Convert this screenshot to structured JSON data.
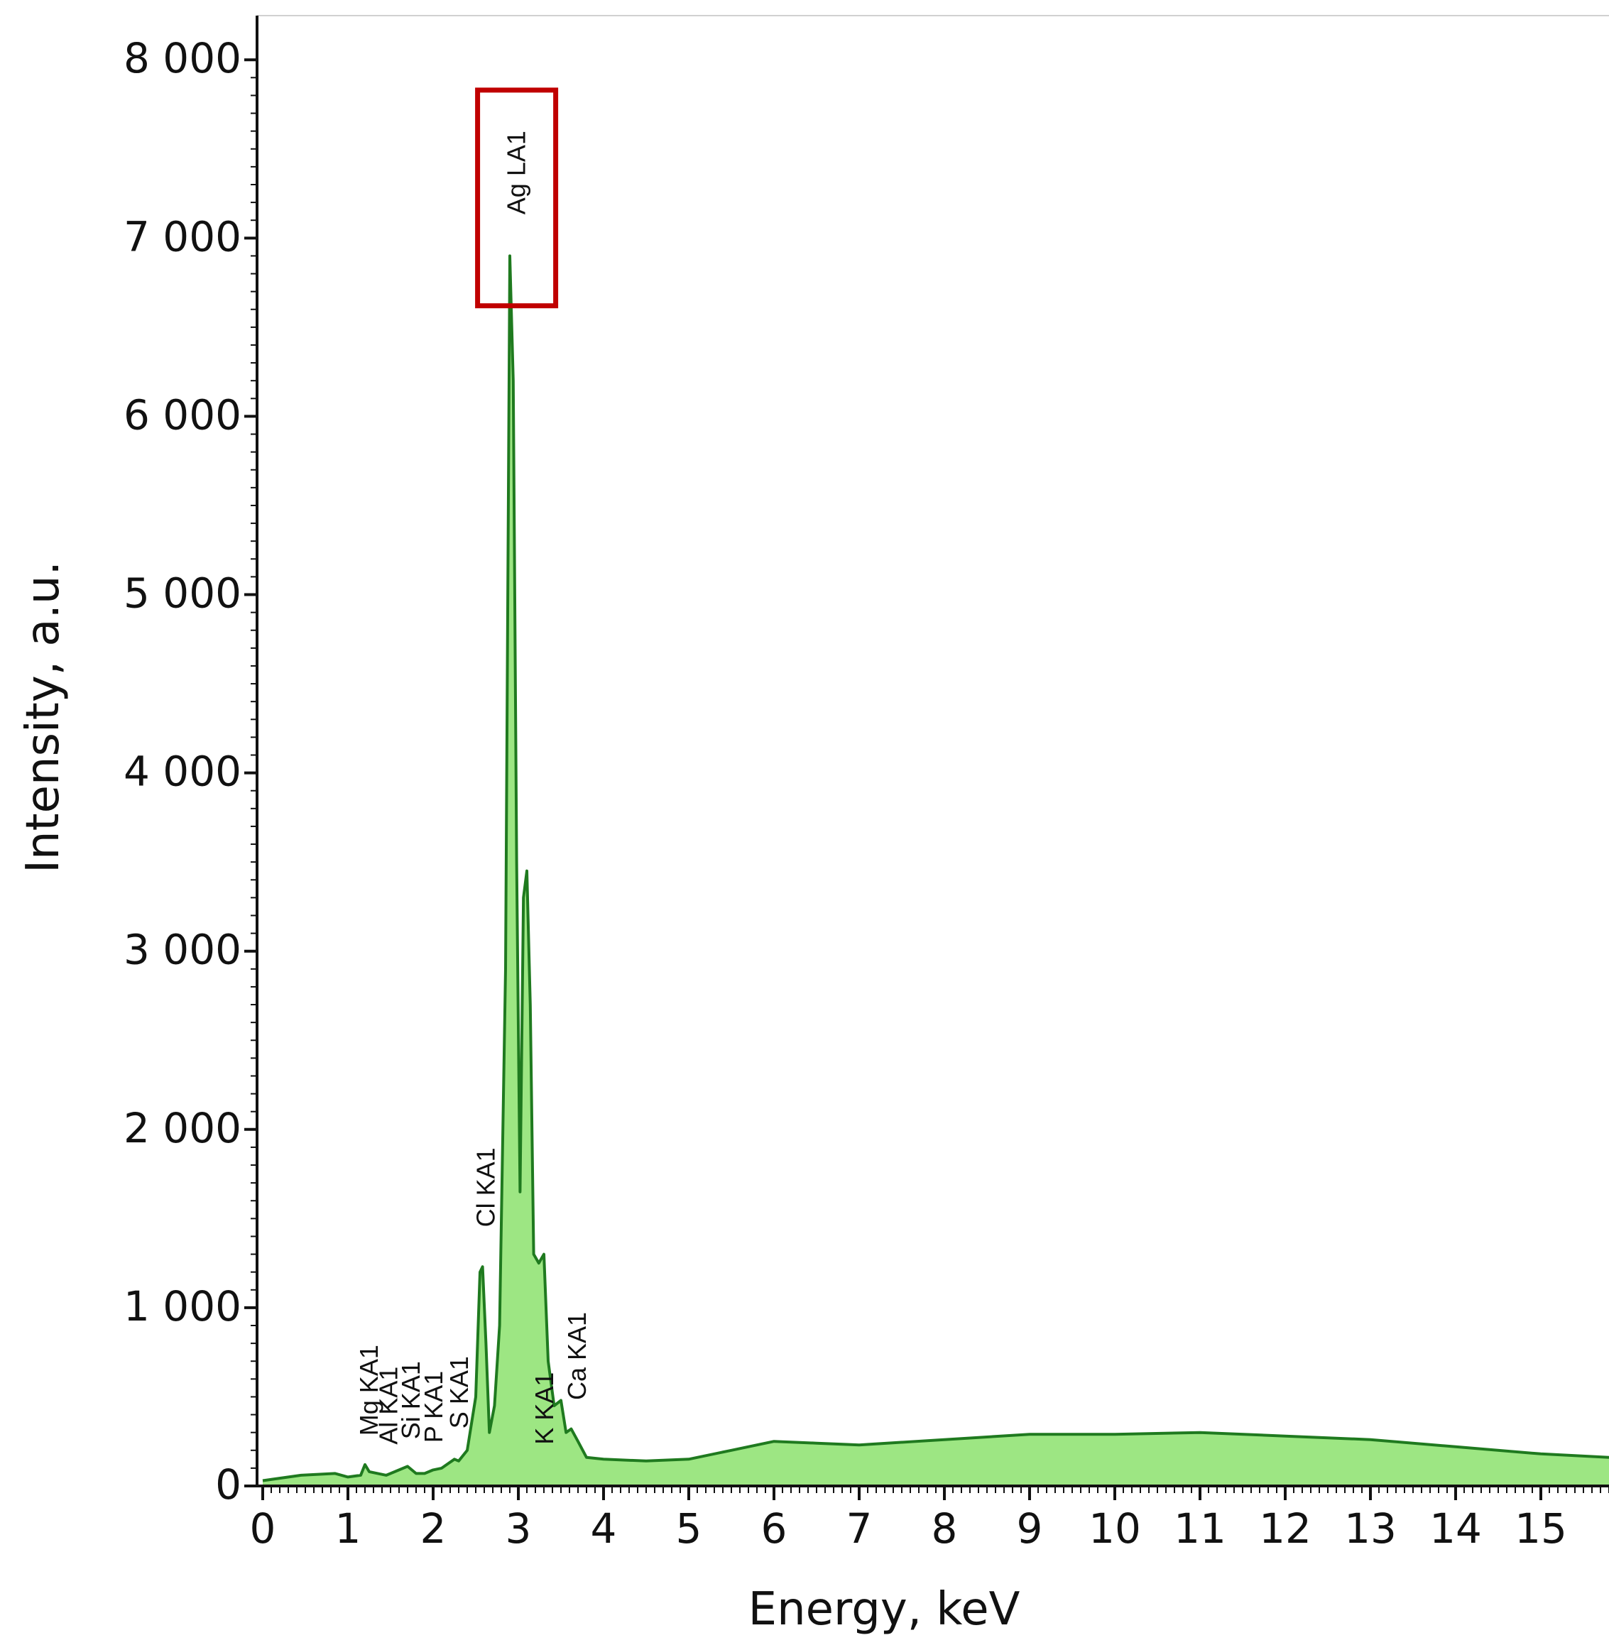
{
  "chart_data": {
    "type": "line",
    "xlabel": "Energy, keV",
    "ylabel": "Intensity, a.u.",
    "xlim": [
      0,
      15.8
    ],
    "ylim": [
      0,
      8200
    ],
    "x_ticks": [
      0,
      1,
      2,
      3,
      4,
      5,
      6,
      7,
      8,
      9,
      10,
      11,
      12,
      13,
      14,
      15
    ],
    "x_tick_labels": [
      "0",
      "1",
      "2",
      "3",
      "4",
      "5",
      "6",
      "7",
      "8",
      "9",
      "10",
      "11",
      "12",
      "13",
      "14",
      "15"
    ],
    "y_ticks": [
      0,
      1000,
      2000,
      3000,
      4000,
      5000,
      6000,
      7000,
      8000
    ],
    "y_tick_labels": [
      "0",
      "1 000",
      "2 000",
      "3 000",
      "4 000",
      "5 000",
      "6 000",
      "7 000",
      "8 000"
    ],
    "grid": false,
    "line_color": "#1f7a1f",
    "fill_color": "#4cd11e",
    "highlight_color": "#c00000",
    "highlight_peak": "Ag LA1",
    "series": [
      {
        "x": [
          0,
          0.45,
          0.85,
          1.0,
          1.15,
          1.2,
          1.25,
          1.35,
          1.45,
          1.6,
          1.7,
          1.8,
          1.9,
          2.0,
          2.1,
          2.25,
          2.3,
          2.4,
          2.5,
          2.55,
          2.58,
          2.62,
          2.66,
          2.72,
          2.78,
          2.85,
          2.9,
          2.94,
          2.98,
          3.02,
          3.06,
          3.1,
          3.14,
          3.18,
          3.24,
          3.3,
          3.35,
          3.42,
          3.5,
          3.56,
          3.62,
          3.7,
          3.8,
          4.0,
          4.5,
          5.0,
          5.5,
          6.0,
          6.5,
          7.0,
          8.0,
          9.0,
          10.0,
          11.0,
          12.0,
          13.0,
          14.0,
          15.0,
          15.8
        ],
        "y": [
          30,
          60,
          70,
          50,
          60,
          120,
          80,
          70,
          60,
          90,
          110,
          70,
          70,
          90,
          100,
          150,
          140,
          200,
          500,
          1200,
          1230,
          800,
          300,
          450,
          900,
          2900,
          6900,
          6200,
          3500,
          1650,
          3300,
          3450,
          2700,
          1300,
          1250,
          1300,
          700,
          450,
          480,
          300,
          320,
          250,
          160,
          150,
          140,
          150,
          200,
          250,
          240,
          230,
          260,
          290,
          290,
          300,
          280,
          260,
          220,
          180,
          160
        ]
      }
    ],
    "peak_labels": [
      {
        "text": "Mg KA1",
        "x": 1.25,
        "y": 250
      },
      {
        "text": "Al KA1",
        "x": 1.48,
        "y": 200
      },
      {
        "text": "Si KA1",
        "x": 1.74,
        "y": 230
      },
      {
        "text": "P KA1",
        "x": 2.01,
        "y": 210
      },
      {
        "text": "S KA1",
        "x": 2.31,
        "y": 290
      },
      {
        "text": "Cl KA1",
        "x": 2.62,
        "y": 1420
      },
      {
        "text": "Ag LA1",
        "x": 2.98,
        "y": 7100
      },
      {
        "text": "K KA1",
        "x": 3.31,
        "y": 200
      },
      {
        "text": "Ca KA1",
        "x": 3.69,
        "y": 450
      }
    ]
  }
}
